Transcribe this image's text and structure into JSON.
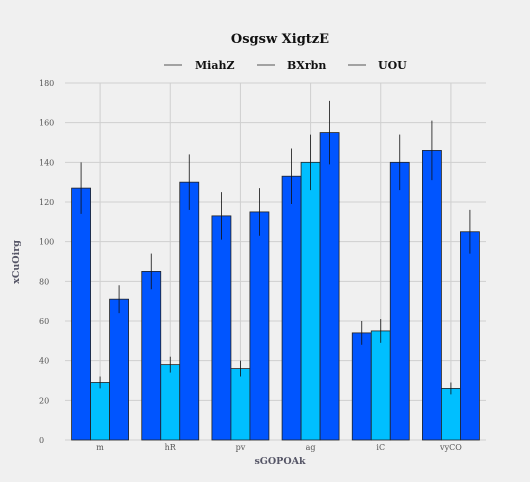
{
  "chart_data": {
    "type": "bar",
    "title": "Osgsw XigtzE",
    "xlabel": "sGOPOAk",
    "ylabel": "xCuOirg",
    "categories": [
      "m",
      "hR",
      "pv",
      "ag",
      "iC",
      "vyCO"
    ],
    "ylim": [
      0,
      180
    ],
    "yticks": [
      0,
      20,
      40,
      60,
      80,
      100,
      120,
      140,
      160,
      180
    ],
    "grid": true,
    "legend_position": "top-center",
    "series": [
      {
        "name": "MiahZ",
        "color": "#0055ff",
        "values": [
          127,
          85,
          113,
          133,
          54,
          146
        ],
        "errors": [
          13,
          9,
          12,
          14,
          6,
          15
        ]
      },
      {
        "name": "BXrbn",
        "color": "#00bfff",
        "values": [
          29,
          38,
          36,
          140,
          55,
          26
        ],
        "errors": [
          3,
          4,
          4,
          14,
          6,
          3
        ]
      },
      {
        "name": "UOU",
        "color": "#0055ff",
        "values": [
          71,
          130,
          115,
          155,
          140,
          105
        ],
        "errors": [
          7,
          14,
          12,
          16,
          14,
          11
        ]
      }
    ]
  }
}
